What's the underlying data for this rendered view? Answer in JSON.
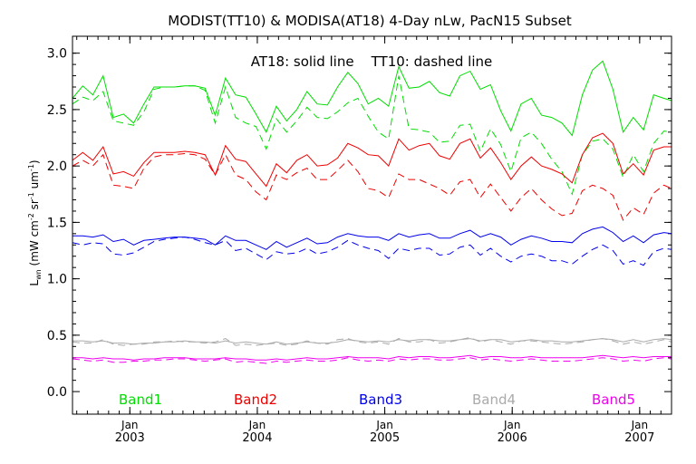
{
  "chart_data": {
    "type": "line",
    "title": "MODIST(TT10) & MODISA(AT18) 4-Day nLw, PacN15 Subset",
    "annotation": "AT18: solid line    TT10: dashed line",
    "ylabel_main": "L",
    "ylabel_sub": "wn",
    "ylabel_units": " (mW cm",
    "ylabel_exp1": "-2",
    "ylabel_mid": " sr",
    "ylabel_exp2": "-1",
    "ylabel_mid2": " um",
    "ylabel_exp3": "-1",
    "ylabel_end": ")",
    "ylim": [
      -0.2,
      3.15
    ],
    "xlim": [
      2002.55,
      2007.25
    ],
    "yticks": [
      "0.0",
      "0.5",
      "1.0",
      "1.5",
      "2.0",
      "2.5",
      "3.0"
    ],
    "ytick_values": [
      0.0,
      0.5,
      1.0,
      1.5,
      2.0,
      2.5,
      3.0
    ],
    "xticks": [
      {
        "month": "Jan",
        "year": "2003",
        "value": 2003.0
      },
      {
        "month": "Jan",
        "year": "2004",
        "value": 2004.0
      },
      {
        "month": "Jan",
        "year": "2005",
        "value": 2005.0
      },
      {
        "month": "Jan",
        "year": "2006",
        "value": 2006.0
      },
      {
        "month": "Jan",
        "year": "2007",
        "value": 2007.0
      }
    ],
    "x": [
      2002.55,
      2002.63,
      2002.71,
      2002.79,
      2002.87,
      2002.95,
      2003.03,
      2003.11,
      2003.19,
      2003.27,
      2003.35,
      2003.43,
      2003.51,
      2003.59,
      2003.67,
      2003.75,
      2003.83,
      2003.91,
      2003.99,
      2004.07,
      2004.15,
      2004.23,
      2004.31,
      2004.39,
      2004.47,
      2004.55,
      2004.63,
      2004.71,
      2004.79,
      2004.87,
      2004.95,
      2005.03,
      2005.11,
      2005.19,
      2005.27,
      2005.35,
      2005.43,
      2005.51,
      2005.59,
      2005.67,
      2005.75,
      2005.83,
      2005.91,
      2005.99,
      2006.07,
      2006.15,
      2006.23,
      2006.31,
      2006.39,
      2006.47,
      2006.55,
      2006.63,
      2006.71,
      2006.79,
      2006.87,
      2006.95,
      2007.03,
      2007.11,
      2007.19,
      2007.25
    ],
    "series": [
      {
        "name": "Band1",
        "style": "solid",
        "color": "#00dd00",
        "values": [
          2.6,
          2.71,
          2.63,
          2.8,
          2.43,
          2.46,
          2.38,
          2.55,
          2.7,
          2.7,
          2.7,
          2.71,
          2.71,
          2.69,
          2.45,
          2.78,
          2.63,
          2.61,
          2.46,
          2.3,
          2.53,
          2.4,
          2.5,
          2.66,
          2.55,
          2.54,
          2.7,
          2.83,
          2.73,
          2.55,
          2.6,
          2.53,
          2.88,
          2.69,
          2.7,
          2.75,
          2.65,
          2.62,
          2.8,
          2.84,
          2.68,
          2.72,
          2.49,
          2.31,
          2.55,
          2.6,
          2.45,
          2.43,
          2.38,
          2.27,
          2.63,
          2.85,
          2.93,
          2.68,
          2.3,
          2.43,
          2.32,
          2.63,
          2.6,
          2.58
        ]
      },
      {
        "name": "Band1",
        "style": "dashed",
        "color": "#00dd00",
        "values": [
          2.55,
          2.61,
          2.58,
          2.66,
          2.4,
          2.38,
          2.36,
          2.48,
          2.68,
          2.7,
          2.7,
          2.71,
          2.71,
          2.67,
          2.38,
          2.7,
          2.43,
          2.38,
          2.35,
          2.15,
          2.42,
          2.3,
          2.4,
          2.52,
          2.43,
          2.42,
          2.48,
          2.56,
          2.6,
          2.44,
          2.3,
          2.24,
          2.8,
          2.33,
          2.32,
          2.3,
          2.21,
          2.22,
          2.36,
          2.37,
          2.13,
          2.33,
          2.19,
          1.95,
          2.25,
          2.3,
          2.2,
          2.06,
          1.95,
          1.75,
          2.1,
          2.22,
          2.24,
          2.15,
          1.9,
          2.1,
          1.95,
          2.2,
          2.31,
          2.3
        ]
      },
      {
        "name": "Band2",
        "style": "solid",
        "color": "#ee0000",
        "values": [
          2.05,
          2.12,
          2.05,
          2.17,
          1.93,
          1.95,
          1.91,
          2.03,
          2.12,
          2.12,
          2.12,
          2.13,
          2.12,
          2.1,
          1.92,
          2.18,
          2.06,
          2.04,
          1.93,
          1.82,
          2.02,
          1.94,
          2.05,
          2.1,
          2.0,
          2.01,
          2.07,
          2.2,
          2.16,
          2.1,
          2.09,
          2.0,
          2.24,
          2.14,
          2.18,
          2.2,
          2.09,
          2.06,
          2.2,
          2.24,
          2.07,
          2.16,
          2.03,
          1.88,
          2.0,
          2.08,
          2.0,
          1.97,
          1.93,
          1.85,
          2.1,
          2.25,
          2.29,
          2.2,
          1.93,
          2.02,
          1.92,
          2.14,
          2.17,
          2.17
        ]
      },
      {
        "name": "Band2",
        "style": "dashed",
        "color": "#ee0000",
        "values": [
          2.0,
          2.05,
          2.0,
          2.1,
          1.83,
          1.82,
          1.8,
          1.98,
          2.08,
          2.1,
          2.1,
          2.11,
          2.1,
          2.06,
          1.92,
          2.1,
          1.92,
          1.88,
          1.77,
          1.7,
          1.92,
          1.88,
          1.94,
          1.98,
          1.88,
          1.88,
          1.96,
          2.05,
          1.95,
          1.8,
          1.78,
          1.72,
          1.93,
          1.88,
          1.88,
          1.84,
          1.8,
          1.74,
          1.86,
          1.88,
          1.72,
          1.84,
          1.72,
          1.6,
          1.72,
          1.8,
          1.7,
          1.62,
          1.56,
          1.58,
          1.78,
          1.83,
          1.8,
          1.74,
          1.52,
          1.63,
          1.57,
          1.76,
          1.83,
          1.8
        ]
      },
      {
        "name": "Band3",
        "style": "solid",
        "color": "#0000ee",
        "values": [
          1.38,
          1.38,
          1.37,
          1.39,
          1.33,
          1.35,
          1.3,
          1.34,
          1.35,
          1.36,
          1.37,
          1.37,
          1.36,
          1.35,
          1.3,
          1.38,
          1.34,
          1.34,
          1.3,
          1.26,
          1.33,
          1.28,
          1.32,
          1.36,
          1.31,
          1.32,
          1.37,
          1.4,
          1.38,
          1.37,
          1.37,
          1.34,
          1.4,
          1.37,
          1.39,
          1.4,
          1.36,
          1.36,
          1.4,
          1.43,
          1.37,
          1.4,
          1.37,
          1.3,
          1.35,
          1.38,
          1.36,
          1.33,
          1.33,
          1.32,
          1.4,
          1.44,
          1.46,
          1.41,
          1.33,
          1.38,
          1.32,
          1.39,
          1.41,
          1.4
        ]
      },
      {
        "name": "Band3",
        "style": "dashed",
        "color": "#0000ee",
        "values": [
          1.32,
          1.3,
          1.32,
          1.31,
          1.22,
          1.21,
          1.23,
          1.28,
          1.33,
          1.35,
          1.36,
          1.37,
          1.35,
          1.32,
          1.3,
          1.34,
          1.25,
          1.27,
          1.22,
          1.17,
          1.24,
          1.22,
          1.23,
          1.27,
          1.22,
          1.24,
          1.28,
          1.34,
          1.3,
          1.27,
          1.25,
          1.18,
          1.27,
          1.25,
          1.27,
          1.27,
          1.21,
          1.22,
          1.28,
          1.3,
          1.21,
          1.27,
          1.2,
          1.15,
          1.2,
          1.22,
          1.2,
          1.16,
          1.16,
          1.13,
          1.2,
          1.26,
          1.3,
          1.25,
          1.13,
          1.16,
          1.12,
          1.24,
          1.27,
          1.26
        ]
      },
      {
        "name": "Band4",
        "style": "solid",
        "color": "#aaaaaa",
        "values": [
          0.45,
          0.45,
          0.44,
          0.45,
          0.43,
          0.43,
          0.42,
          0.43,
          0.43,
          0.44,
          0.44,
          0.45,
          0.44,
          0.44,
          0.43,
          0.45,
          0.43,
          0.44,
          0.43,
          0.42,
          0.44,
          0.42,
          0.43,
          0.44,
          0.43,
          0.43,
          0.44,
          0.46,
          0.45,
          0.44,
          0.45,
          0.44,
          0.46,
          0.45,
          0.46,
          0.46,
          0.45,
          0.45,
          0.46,
          0.47,
          0.45,
          0.46,
          0.46,
          0.44,
          0.45,
          0.46,
          0.45,
          0.45,
          0.44,
          0.44,
          0.45,
          0.46,
          0.47,
          0.46,
          0.44,
          0.46,
          0.44,
          0.46,
          0.47,
          0.46
        ]
      },
      {
        "name": "Band4",
        "style": "dashed",
        "color": "#aaaaaa",
        "values": [
          0.44,
          0.43,
          0.43,
          0.46,
          0.42,
          0.41,
          0.42,
          0.42,
          0.44,
          0.44,
          0.45,
          0.44,
          0.44,
          0.43,
          0.44,
          0.47,
          0.41,
          0.42,
          0.41,
          0.42,
          0.43,
          0.41,
          0.42,
          0.45,
          0.43,
          0.42,
          0.46,
          0.47,
          0.44,
          0.43,
          0.44,
          0.42,
          0.47,
          0.44,
          0.44,
          0.46,
          0.43,
          0.44,
          0.46,
          0.48,
          0.44,
          0.46,
          0.44,
          0.42,
          0.45,
          0.45,
          0.44,
          0.43,
          0.42,
          0.43,
          0.44,
          0.46,
          0.47,
          0.45,
          0.42,
          0.44,
          0.42,
          0.44,
          0.46,
          0.44
        ]
      },
      {
        "name": "Band5",
        "style": "solid",
        "color": "#ee00ee",
        "values": [
          0.3,
          0.3,
          0.29,
          0.3,
          0.29,
          0.29,
          0.28,
          0.29,
          0.29,
          0.3,
          0.3,
          0.3,
          0.29,
          0.29,
          0.29,
          0.3,
          0.29,
          0.29,
          0.28,
          0.28,
          0.29,
          0.28,
          0.29,
          0.3,
          0.29,
          0.29,
          0.3,
          0.31,
          0.3,
          0.3,
          0.3,
          0.29,
          0.31,
          0.3,
          0.31,
          0.31,
          0.3,
          0.3,
          0.31,
          0.32,
          0.3,
          0.31,
          0.31,
          0.3,
          0.3,
          0.31,
          0.3,
          0.3,
          0.3,
          0.3,
          0.3,
          0.31,
          0.32,
          0.31,
          0.3,
          0.31,
          0.3,
          0.31,
          0.31,
          0.31
        ]
      },
      {
        "name": "Band5",
        "style": "dashed",
        "color": "#ee00ee",
        "values": [
          0.29,
          0.28,
          0.27,
          0.28,
          0.26,
          0.26,
          0.27,
          0.27,
          0.28,
          0.28,
          0.29,
          0.29,
          0.28,
          0.27,
          0.28,
          0.29,
          0.26,
          0.27,
          0.26,
          0.25,
          0.27,
          0.26,
          0.27,
          0.28,
          0.27,
          0.27,
          0.28,
          0.3,
          0.28,
          0.27,
          0.28,
          0.27,
          0.29,
          0.28,
          0.29,
          0.29,
          0.28,
          0.28,
          0.29,
          0.3,
          0.28,
          0.29,
          0.28,
          0.27,
          0.28,
          0.29,
          0.28,
          0.27,
          0.27,
          0.27,
          0.28,
          0.29,
          0.3,
          0.29,
          0.27,
          0.28,
          0.27,
          0.29,
          0.3,
          0.29
        ]
      }
    ],
    "legend": [
      {
        "label": "Band1",
        "color": "#00dd00"
      },
      {
        "label": "Band2",
        "color": "#ee0000"
      },
      {
        "label": "Band3",
        "color": "#0000ee"
      },
      {
        "label": "Band4",
        "color": "#aaaaaa"
      },
      {
        "label": "Band5",
        "color": "#ee00ee"
      }
    ]
  }
}
